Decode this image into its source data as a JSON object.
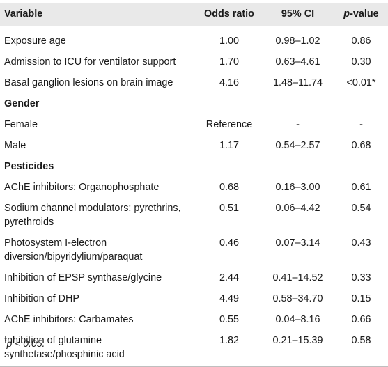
{
  "table": {
    "headers": {
      "variable": "Variable",
      "odds_ratio": "Odds ratio",
      "ci": "95% CI",
      "pvalue_italic": "p",
      "pvalue_rest": "-value"
    },
    "rows": [
      {
        "variable": "Exposure age",
        "odds_ratio": "1.00",
        "ci": "0.98–1.02",
        "p": "0.86"
      },
      {
        "variable": "Admission to ICU for ventilator support",
        "odds_ratio": "1.70",
        "ci": "0.63–4.61",
        "p": "0.30"
      },
      {
        "variable": "Basal ganglion lesions on brain image",
        "odds_ratio": "4.16",
        "ci": "1.48–11.74",
        "p": "<0.01*"
      }
    ],
    "gender": {
      "heading": "Gender",
      "rows": [
        {
          "variable": "Female",
          "odds_ratio": "Reference",
          "ci": "-",
          "p": "-"
        },
        {
          "variable": "Male",
          "odds_ratio": "1.17",
          "ci": "0.54–2.57",
          "p": "0.68"
        }
      ]
    },
    "pesticides": {
      "heading": "Pesticides",
      "rows": [
        {
          "variable": "AChE inhibitors: Organophosphate",
          "odds_ratio": "0.68",
          "ci": "0.16–3.00",
          "p": "0.61"
        },
        {
          "variable": "Sodium channel modulators: pyrethrins, pyrethroids",
          "odds_ratio": "0.51",
          "ci": "0.06–4.42",
          "p": "0.54"
        },
        {
          "variable": "Photosystem I-electron diversion/bipyridylium/paraquat",
          "odds_ratio": "0.46",
          "ci": "0.07–3.14",
          "p": "0.43"
        },
        {
          "variable": "Inhibition of EPSP synthase/glycine",
          "odds_ratio": "2.44",
          "ci": "0.41–14.52",
          "p": "0.33"
        },
        {
          "variable": "Inhibition of DHP",
          "odds_ratio": "4.49",
          "ci": "0.58–34.70",
          "p": "0.15"
        },
        {
          "variable": "AChE inhibitors: Carbamates",
          "odds_ratio": "0.55",
          "ci": "0.04–8.16",
          "p": "0.66"
        },
        {
          "variable": "Inhibition of glutamine synthetase/phosphinic acid",
          "odds_ratio": "1.82",
          "ci": "0.21–15.39",
          "p": "0.58"
        }
      ]
    }
  },
  "footnote": {
    "mark": "*",
    "text": "p < 0.05."
  }
}
